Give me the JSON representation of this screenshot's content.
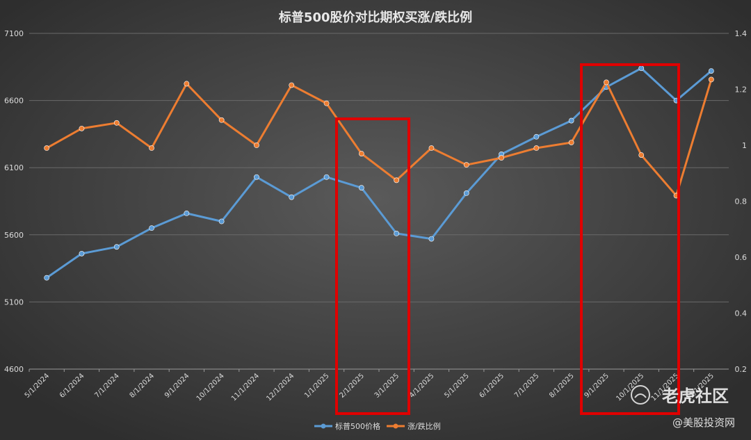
{
  "chart_data": {
    "type": "line",
    "title": "标普500股价对比期权买涨/跌比例",
    "categories": [
      "5/1/2024",
      "6/1/2024",
      "7/1/2024",
      "8/1/2024",
      "9/1/2024",
      "10/1/2024",
      "11/1/2024",
      "12/1/2024",
      "1/1/2025",
      "2/1/2025",
      "3/1/2025",
      "4/1/2025",
      "5/1/2025",
      "6/1/2025",
      "7/1/2025",
      "8/1/2025",
      "9/1/2025",
      "10/1/2025",
      "11/1/2025",
      "12/1/2025"
    ],
    "y_left": {
      "ylim": [
        4600,
        7100
      ],
      "ticks": [
        "4600",
        "5100",
        "5600",
        "6100",
        "6600",
        "7100"
      ]
    },
    "y_right": {
      "ylim": [
        0.2,
        1.4
      ],
      "ticks": [
        "0.2",
        "0.4",
        "0.6",
        "0.8",
        "1",
        "1.2",
        "1.4"
      ]
    },
    "series": [
      {
        "name": "标普500价格",
        "axis": "left",
        "color": "#5b9bd5",
        "values": [
          5280,
          5460,
          5510,
          5650,
          5760,
          5700,
          6030,
          5880,
          6030,
          5950,
          5610,
          5570,
          5910,
          6200,
          6330,
          6450,
          6700,
          6840,
          6600,
          6820
        ]
      },
      {
        "name": "涨/跌比例",
        "axis": "right",
        "color": "#ed7d31",
        "values": [
          0.99,
          1.06,
          1.08,
          0.99,
          1.22,
          1.09,
          1.0,
          1.215,
          1.15,
          0.97,
          0.875,
          0.99,
          0.93,
          0.955,
          0.99,
          1.01,
          1.225,
          0.965,
          0.82,
          1.235
        ]
      }
    ],
    "legend_position": "bottom",
    "grid": true
  },
  "highlights": {
    "color": "#e00000"
  },
  "watermark": {
    "logo": "老虎社区",
    "sub": "@美股投资网"
  }
}
